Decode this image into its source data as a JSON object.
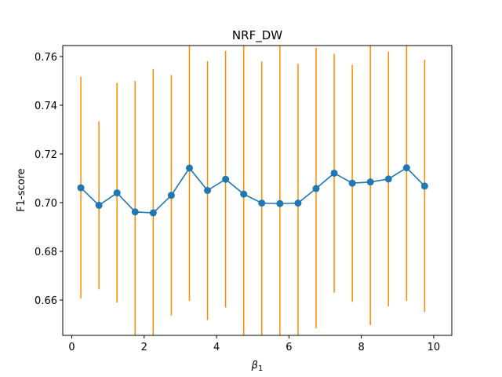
{
  "chart_data": {
    "type": "line",
    "title": "NRF_DW",
    "xlabel_symbol": "β",
    "xlabel_subscript": "1",
    "ylabel": "F1-score",
    "xlim": [
      -0.25,
      10.5
    ],
    "ylim": [
      0.6455,
      0.7645
    ],
    "xticks": [
      0,
      2,
      4,
      6,
      8,
      10
    ],
    "xtick_labels": [
      "0",
      "2",
      "4",
      "6",
      "8",
      "10"
    ],
    "yticks": [
      0.66,
      0.68,
      0.7,
      0.72,
      0.74,
      0.76
    ],
    "ytick_labels": [
      "0.66",
      "0.68",
      "0.70",
      "0.72",
      "0.74",
      "0.76"
    ],
    "series": [
      {
        "x": [
          0.25,
          0.75,
          1.25,
          1.75,
          2.25,
          2.75,
          3.25,
          3.75,
          4.25,
          4.75,
          5.25,
          5.75,
          6.25,
          6.75,
          7.25,
          7.75,
          8.25,
          8.75,
          9.25,
          9.75
        ],
        "y": [
          0.7061,
          0.6989,
          0.704,
          0.6962,
          0.6958,
          0.703,
          0.7142,
          0.705,
          0.7096,
          0.7035,
          0.6998,
          0.6996,
          0.6998,
          0.7058,
          0.7121,
          0.708,
          0.7085,
          0.7097,
          0.7143,
          0.7068
        ],
        "err_low": [
          0.6607,
          0.6644,
          0.659,
          0.6455,
          0.6455,
          0.6536,
          0.6597,
          0.6518,
          0.657,
          0.6455,
          0.6455,
          0.6455,
          0.6455,
          0.6484,
          0.663,
          0.6593,
          0.6497,
          0.6574,
          0.6597,
          0.6551
        ],
        "err_high": [
          0.7517,
          0.7334,
          0.7492,
          0.75,
          0.7549,
          0.7524,
          0.7645,
          0.7581,
          0.7623,
          0.7645,
          0.758,
          0.7645,
          0.757,
          0.7636,
          0.7611,
          0.7566,
          0.7645,
          0.762,
          0.7645,
          0.7587
        ]
      }
    ],
    "colors": {
      "line": "#1f77b4",
      "marker": "#1f77b4",
      "errorbar": "#ff8c00",
      "axes": "#000000"
    },
    "grid": false,
    "legend": "none"
  }
}
